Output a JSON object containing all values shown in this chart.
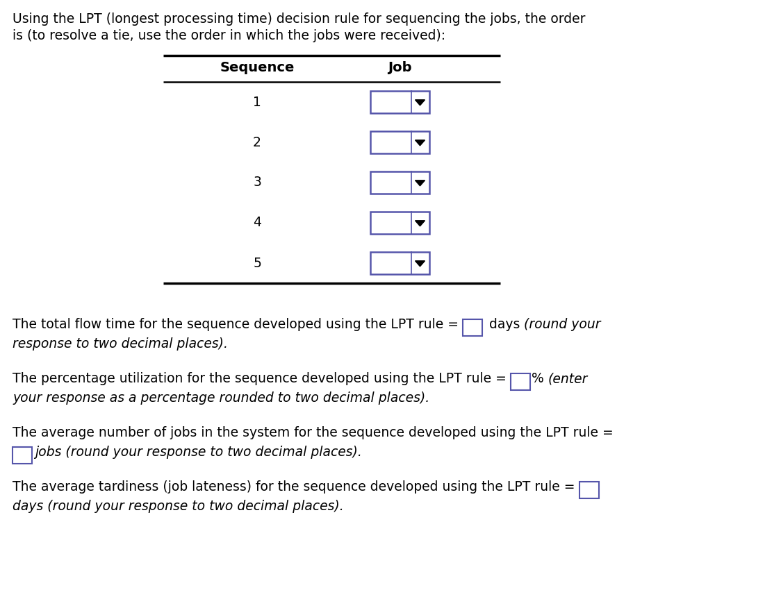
{
  "title_line1": "Using the LPT (longest processing time) decision rule for sequencing the jobs, the order",
  "title_line2": "is (to resolve a tie, use the order in which the jobs were received):",
  "col_sequence": "Sequence",
  "col_job": "Job",
  "sequence_numbers": [
    "1",
    "2",
    "3",
    "4",
    "5"
  ],
  "background_color": "#ffffff",
  "text_color": "#000000",
  "table_line_color": "#000000",
  "dropdown_border_color": "#5555aa",
  "dropdown_fill_color": "#ffffff",
  "arrow_color": "#000000",
  "font_size_title": 13.5,
  "font_size_table_header": 14,
  "font_size_table_body": 13.5,
  "font_size_footer": 13.5,
  "footer_blocks": [
    {
      "pre": "The total flow time for the sequence developed using the LPT rule = ",
      "post": " days ",
      "italic_suffix": "(round your",
      "line2_italic": "response to two decimal places)."
    },
    {
      "pre": "The percentage utilization for the sequence developed using the LPT rule = ",
      "post": "% ",
      "italic_suffix": "(enter",
      "line2_italic": "your response as a percentage rounded to two decimal places)."
    },
    {
      "pre": "The average number of jobs in the system for the sequence developed using the LPT rule =",
      "post": "",
      "italic_suffix": "",
      "line2_pre": "",
      "line2_italic": "jobs (round your response to two decimal places).",
      "box_on_line2": true
    },
    {
      "pre": "The average tardiness (job lateness) for the sequence developed using the LPT rule = ",
      "post": "",
      "italic_suffix": "",
      "line2_italic": "days (round your response to two decimal places).",
      "box_at_end_line1": true
    }
  ]
}
